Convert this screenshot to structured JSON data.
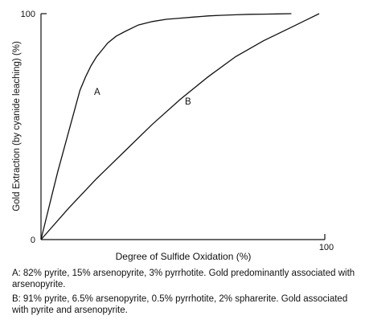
{
  "chart_data": {
    "type": "line",
    "xlabel": "Degree of Sulfide Oxidation (%)",
    "ylabel": "Gold Extraction (by cyanide leaching) (%)",
    "xlim": [
      0,
      100
    ],
    "ylim": [
      0,
      100
    ],
    "x_ticks": [
      "0",
      "100"
    ],
    "y_ticks": [
      "0",
      "100"
    ],
    "grid": false,
    "series": [
      {
        "name": "A",
        "x": [
          0,
          2,
          4,
          6,
          8,
          10,
          12,
          14,
          16,
          18,
          20,
          22,
          24,
          27,
          30,
          35,
          40,
          45,
          50,
          55,
          60,
          65,
          70,
          75,
          80,
          85,
          90
        ],
        "y": [
          0,
          10,
          20,
          30,
          39,
          48,
          57,
          66,
          72,
          77,
          81,
          84,
          87,
          90,
          92,
          95,
          96.5,
          97.5,
          98,
          98.5,
          99,
          99.3,
          99.5,
          99.7,
          99.8,
          99.9,
          100
        ]
      },
      {
        "name": "B",
        "x": [
          0,
          10,
          20,
          30,
          40,
          50,
          60,
          70,
          80,
          90,
          100
        ],
        "y": [
          0,
          14,
          27,
          39,
          51,
          62,
          72,
          81,
          88,
          94,
          100
        ]
      }
    ]
  },
  "captions": {
    "a_tag": "A:",
    "a_text": "82% pyrite, 15% arsenopyrite, 3% pyrrhotite. Gold predominantly associated with arsenopyrite.",
    "b_tag": "B:",
    "b_text": "91% pyrite, 6.5% arsenopyrite, 0.5% pyrrhotite, 2% spharerite. Gold associated with pyrite and arsenopyrite."
  }
}
